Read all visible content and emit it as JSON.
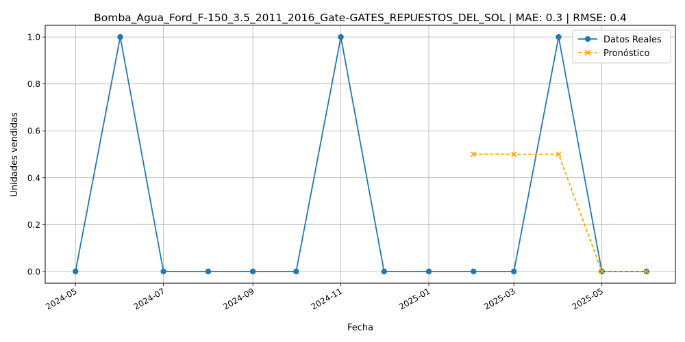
{
  "chart_data": {
    "type": "line",
    "title": "Bomba_Agua_Ford_F-150_3.5_2011_2016_Gate-GATES_REPUESTOS_DEL_SOL | MAE: 0.3 | RMSE: 0.4",
    "xlabel": "Fecha",
    "ylabel": "Unidades vendidas",
    "x_ticks": [
      "2024-05",
      "2024-07",
      "2024-09",
      "2024-11",
      "2025-01",
      "2025-03",
      "2025-05"
    ],
    "y_ticks": [
      "0.0",
      "0.2",
      "0.4",
      "0.6",
      "0.8",
      "1.0"
    ],
    "ylim": [
      -0.05,
      1.05
    ],
    "xlim": [
      "2024-04-10",
      "2025-06-21"
    ],
    "grid": true,
    "legend_position": "top-right",
    "series": [
      {
        "name": "Datos Reales",
        "color": "#1f77b4",
        "line_style": "solid",
        "marker": "circle",
        "x": [
          "2024-05-01",
          "2024-06-01",
          "2024-07-01",
          "2024-08-01",
          "2024-09-01",
          "2024-10-01",
          "2024-11-01",
          "2024-12-01",
          "2025-01-01",
          "2025-02-01",
          "2025-03-01",
          "2025-04-01",
          "2025-05-01",
          "2025-06-01"
        ],
        "values": [
          0,
          1,
          0,
          0,
          0,
          0,
          1,
          0,
          0,
          0,
          0,
          1,
          0,
          0
        ]
      },
      {
        "name": "Pronóstico",
        "color": "#ffa500",
        "line_style": "dashed",
        "marker": "x",
        "x": [
          "2025-02-01",
          "2025-03-01",
          "2025-04-01",
          "2025-05-01",
          "2025-06-01"
        ],
        "values": [
          0.5,
          0.5,
          0.5,
          0,
          0
        ]
      }
    ]
  }
}
